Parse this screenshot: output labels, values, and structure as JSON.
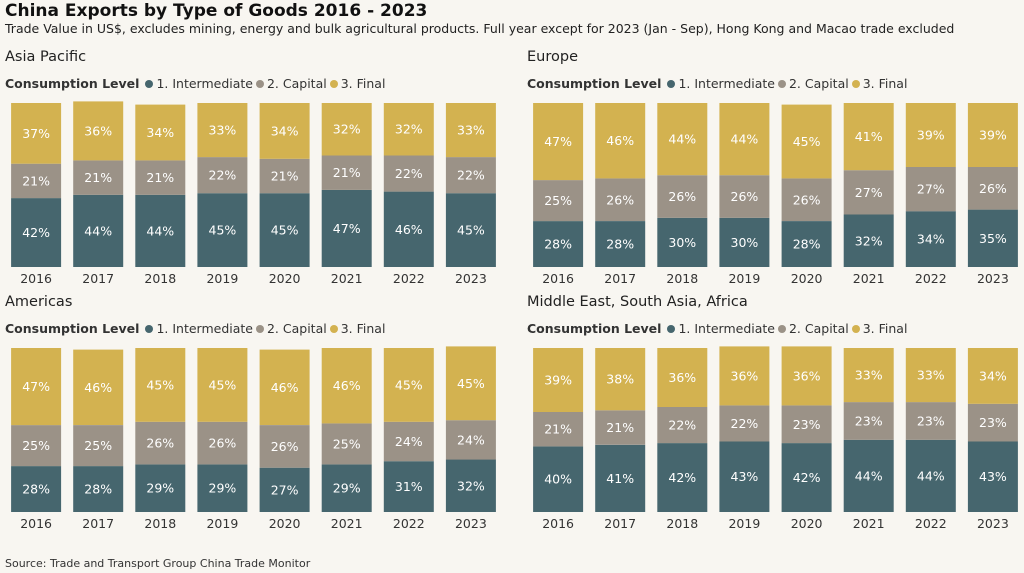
{
  "title": "China Exports by Type of Goods 2016 - 2023",
  "subtitle": "Trade Value in US$, excludes mining, energy and bulk agricultural products. Full year except for 2023 (Jan - Sep), Hong Kong and Macao trade excluded",
  "source": "Source: Trade and Transport Group China Trade Monitor",
  "legend": {
    "title": "Consumption Level",
    "items": [
      {
        "label": "1. Intermediate",
        "color": "#46666e"
      },
      {
        "label": "2. Capital",
        "color": "#9b9287"
      },
      {
        "label": "3. Final",
        "color": "#d3b250"
      }
    ]
  },
  "chart_data": [
    {
      "type": "bar",
      "stacked": true,
      "title": "Asia Pacific",
      "categories": [
        "2016",
        "2017",
        "2018",
        "2019",
        "2020",
        "2021",
        "2022",
        "2023"
      ],
      "ylim": [
        0,
        100
      ],
      "series": [
        {
          "name": "1. Intermediate",
          "values": [
            42,
            44,
            44,
            45,
            45,
            47,
            46,
            45
          ]
        },
        {
          "name": "2. Capital",
          "values": [
            21,
            21,
            21,
            22,
            21,
            21,
            22,
            22
          ]
        },
        {
          "name": "3. Final",
          "values": [
            37,
            36,
            34,
            33,
            34,
            32,
            32,
            33
          ]
        }
      ]
    },
    {
      "type": "bar",
      "stacked": true,
      "title": "Europe",
      "categories": [
        "2016",
        "2017",
        "2018",
        "2019",
        "2020",
        "2021",
        "2022",
        "2023"
      ],
      "ylim": [
        0,
        100
      ],
      "series": [
        {
          "name": "1. Intermediate",
          "values": [
            28,
            28,
            30,
            30,
            28,
            32,
            34,
            35
          ]
        },
        {
          "name": "2. Capital",
          "values": [
            25,
            26,
            26,
            26,
            26,
            27,
            27,
            26
          ]
        },
        {
          "name": "3. Final",
          "values": [
            47,
            46,
            44,
            44,
            45,
            41,
            39,
            39
          ]
        }
      ]
    },
    {
      "type": "bar",
      "stacked": true,
      "title": "Americas",
      "categories": [
        "2016",
        "2017",
        "2018",
        "2019",
        "2020",
        "2021",
        "2022",
        "2023"
      ],
      "ylim": [
        0,
        100
      ],
      "series": [
        {
          "name": "1. Intermediate",
          "values": [
            28,
            28,
            29,
            29,
            27,
            29,
            31,
            32
          ]
        },
        {
          "name": "2. Capital",
          "values": [
            25,
            25,
            26,
            26,
            26,
            25,
            24,
            24
          ]
        },
        {
          "name": "3. Final",
          "values": [
            47,
            46,
            45,
            45,
            46,
            46,
            45,
            45
          ]
        }
      ]
    },
    {
      "type": "bar",
      "stacked": true,
      "title": "Middle East, South Asia, Africa",
      "categories": [
        "2016",
        "2017",
        "2018",
        "2019",
        "2020",
        "2021",
        "2022",
        "2023"
      ],
      "ylim": [
        0,
        100
      ],
      "series": [
        {
          "name": "1. Intermediate",
          "values": [
            40,
            41,
            42,
            43,
            42,
            44,
            44,
            43
          ]
        },
        {
          "name": "2. Capital",
          "values": [
            21,
            21,
            22,
            22,
            23,
            23,
            23,
            23
          ]
        },
        {
          "name": "3. Final",
          "values": [
            39,
            38,
            36,
            36,
            36,
            33,
            33,
            34
          ]
        }
      ]
    }
  ]
}
